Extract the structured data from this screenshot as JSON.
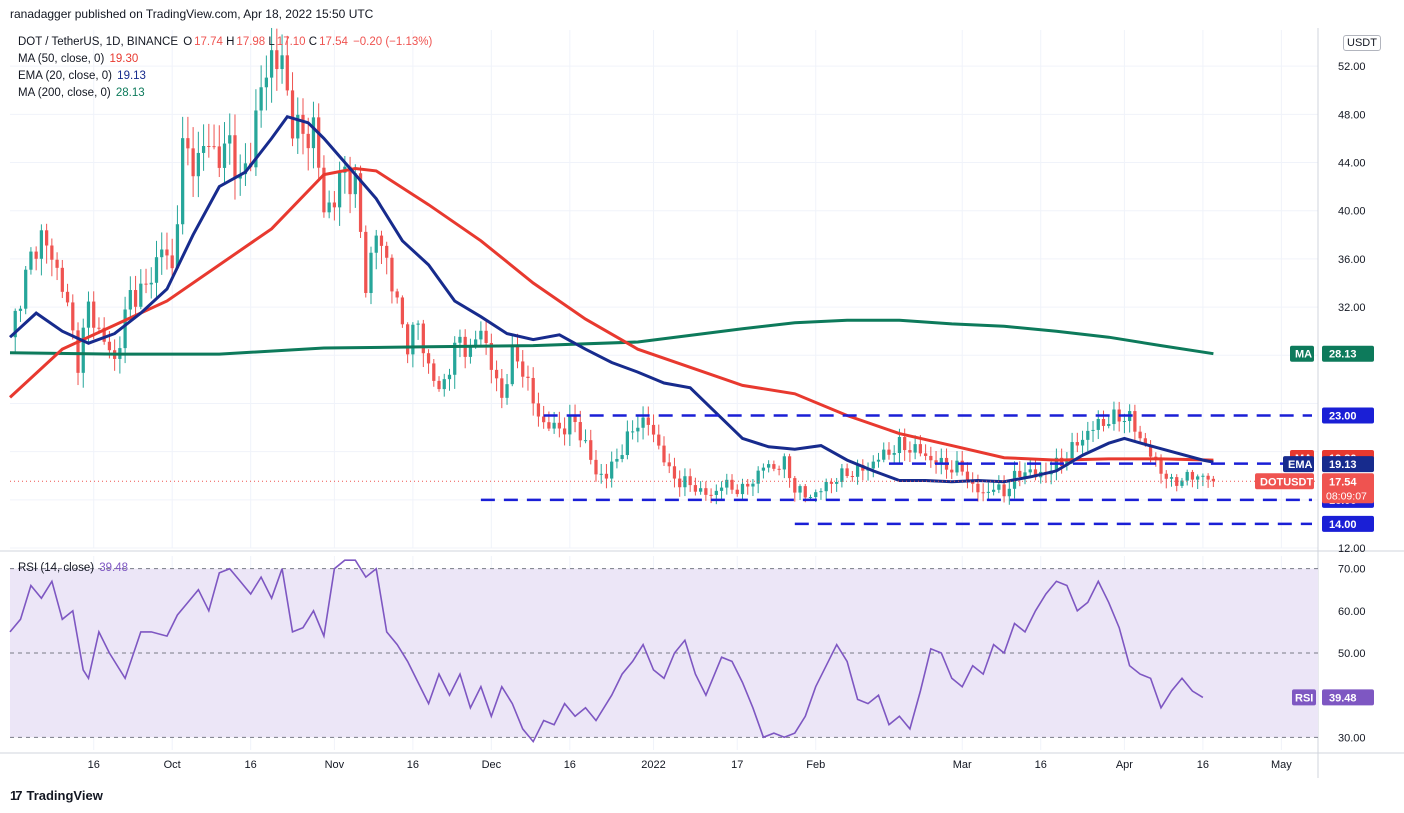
{
  "publisher": "ranadagger published on TradingView.com, Apr 18, 2022 15:50 UTC",
  "branding": "TradingView",
  "legend": {
    "title": "DOT / TetherUS, 1D, BINANCE",
    "ohlc": [
      {
        "k": "O",
        "v": "17.74"
      },
      {
        "k": "H",
        "v": "17.98"
      },
      {
        "k": "L",
        "v": "17.10"
      },
      {
        "k": "C",
        "v": "17.54"
      }
    ],
    "change": "−0.20 (−1.13%)",
    "indicators": [
      {
        "label": "MA (50, close, 0)",
        "value": "19.30",
        "color": "#e8392f"
      },
      {
        "label": "EMA (20, close, 0)",
        "value": "19.13",
        "color": "#172b8d"
      },
      {
        "label": "MA (200, close, 0)",
        "value": "28.13",
        "color": "#0d7a5b"
      }
    ]
  },
  "currency": "USDT",
  "colors": {
    "up": "#26a69a",
    "down": "#ef5350",
    "ma50": "#e8392f",
    "ema20": "#172b8d",
    "ma200": "#0d7a5b",
    "levels": "#1a1fd6",
    "rsi_line": "#7e57c2",
    "rsi_band": "#ece6f7",
    "grid": "#f0f3fa",
    "axis_text": "#131722"
  },
  "chart_data": {
    "type": "candlestick",
    "ylim": [
      12,
      55
    ],
    "y_ticks": [
      12,
      16,
      20,
      24,
      28,
      32,
      36,
      40,
      44,
      48,
      52
    ],
    "y_tick_labels": [
      "12.00",
      "",
      "",
      "",
      "",
      "32.00",
      "36.00",
      "40.00",
      "44.00",
      "48.00",
      "52.00"
    ],
    "x_ticks": [
      {
        "day": 16,
        "label": "16"
      },
      {
        "day": 31,
        "label": "Oct"
      },
      {
        "day": 46,
        "label": "16"
      },
      {
        "day": 62,
        "label": "Nov"
      },
      {
        "day": 77,
        "label": "16"
      },
      {
        "day": 92,
        "label": "Dec"
      },
      {
        "day": 107,
        "label": "16"
      },
      {
        "day": 123,
        "label": "2022"
      },
      {
        "day": 139,
        "label": "17"
      },
      {
        "day": 154,
        "label": "Feb"
      },
      {
        "day": 182,
        "label": "Mar"
      },
      {
        "day": 197,
        "label": "16"
      },
      {
        "day": 213,
        "label": "Apr"
      },
      {
        "day": 228,
        "label": "16"
      },
      {
        "day": 243,
        "label": "May"
      }
    ],
    "x_days": [
      0,
      250
    ],
    "price_anchors": [
      [
        0,
        29.5
      ],
      [
        2,
        33
      ],
      [
        4,
        36
      ],
      [
        6,
        38
      ],
      [
        8,
        36
      ],
      [
        10,
        34
      ],
      [
        13,
        27.5
      ],
      [
        15,
        32
      ],
      [
        17,
        30
      ],
      [
        20,
        27.5
      ],
      [
        23,
        33
      ],
      [
        26,
        33.5
      ],
      [
        29,
        37
      ],
      [
        31,
        35
      ],
      [
        33,
        45
      ],
      [
        36,
        44
      ],
      [
        38,
        46
      ],
      [
        40,
        44
      ],
      [
        42,
        46
      ],
      [
        44,
        42
      ],
      [
        46,
        45
      ],
      [
        48,
        50
      ],
      [
        50,
        53
      ],
      [
        52,
        52
      ],
      [
        54,
        47.5
      ],
      [
        56,
        46
      ],
      [
        58,
        47
      ],
      [
        60,
        40
      ],
      [
        62,
        41
      ],
      [
        64,
        43.5
      ],
      [
        66,
        42
      ],
      [
        68,
        34
      ],
      [
        70,
        38
      ],
      [
        72,
        36
      ],
      [
        74,
        32
      ],
      [
        76,
        29
      ],
      [
        78,
        30.5
      ],
      [
        80,
        27
      ],
      [
        82,
        25
      ],
      [
        84,
        27
      ],
      [
        86,
        29.5
      ],
      [
        88,
        28
      ],
      [
        90,
        30.5
      ],
      [
        92,
        27
      ],
      [
        94,
        24.5
      ],
      [
        96,
        28
      ],
      [
        98,
        27
      ],
      [
        100,
        24
      ],
      [
        102,
        22.3
      ],
      [
        104,
        22
      ],
      [
        106,
        22
      ],
      [
        108,
        22.5
      ],
      [
        110,
        20.5
      ],
      [
        112,
        18.2
      ],
      [
        114,
        18
      ],
      [
        116,
        19.5
      ],
      [
        118,
        21
      ],
      [
        120,
        22.5
      ],
      [
        122,
        22.3
      ],
      [
        124,
        20.5
      ],
      [
        126,
        18.3
      ],
      [
        128,
        17.5
      ],
      [
        130,
        17.3
      ],
      [
        132,
        16.7
      ],
      [
        134,
        16.3
      ],
      [
        136,
        17.3
      ],
      [
        138,
        17
      ],
      [
        140,
        16.8
      ],
      [
        142,
        17.6
      ],
      [
        144,
        18.8
      ],
      [
        146,
        18.7
      ],
      [
        148,
        19
      ],
      [
        150,
        17
      ],
      [
        152,
        16.3
      ],
      [
        154,
        16.5
      ],
      [
        156,
        17.2
      ],
      [
        158,
        17.8
      ],
      [
        160,
        18.2
      ],
      [
        162,
        18.4
      ],
      [
        164,
        18.7
      ],
      [
        166,
        19.5
      ],
      [
        168,
        20
      ],
      [
        170,
        20.5
      ],
      [
        172,
        20.3
      ],
      [
        174,
        20
      ],
      [
        176,
        19.3
      ],
      [
        178,
        19
      ],
      [
        180,
        18.6
      ],
      [
        182,
        18.6
      ],
      [
        184,
        17
      ],
      [
        186,
        16.5
      ],
      [
        188,
        17
      ],
      [
        190,
        16.6
      ],
      [
        192,
        17.8
      ],
      [
        194,
        18.5
      ],
      [
        196,
        18
      ],
      [
        198,
        18.3
      ],
      [
        200,
        18.9
      ],
      [
        202,
        19.5
      ],
      [
        204,
        20.8
      ],
      [
        206,
        21.5
      ],
      [
        208,
        22.4
      ],
      [
        210,
        22.5
      ],
      [
        212,
        23
      ],
      [
        214,
        22.7
      ],
      [
        216,
        21.2
      ],
      [
        218,
        19.7
      ],
      [
        220,
        18.5
      ],
      [
        222,
        17.3
      ],
      [
        224,
        17.8
      ],
      [
        226,
        17.9
      ],
      [
        228,
        18
      ],
      [
        230,
        17.54
      ]
    ],
    "ma50": [
      [
        0,
        24.5
      ],
      [
        10,
        28.5
      ],
      [
        20,
        30.5
      ],
      [
        30,
        32.5
      ],
      [
        40,
        35.5
      ],
      [
        50,
        38.5
      ],
      [
        60,
        43
      ],
      [
        66,
        43.5
      ],
      [
        70,
        43.3
      ],
      [
        80,
        40.5
      ],
      [
        90,
        37.5
      ],
      [
        100,
        34
      ],
      [
        110,
        31
      ],
      [
        120,
        28.5
      ],
      [
        130,
        27
      ],
      [
        140,
        25.5
      ],
      [
        150,
        24.8
      ],
      [
        160,
        23
      ],
      [
        170,
        21.5
      ],
      [
        180,
        20.5
      ],
      [
        190,
        19.5
      ],
      [
        200,
        19.3
      ],
      [
        210,
        19.4
      ],
      [
        220,
        19.4
      ],
      [
        230,
        19.3
      ]
    ],
    "ema20": [
      [
        0,
        29.5
      ],
      [
        5,
        31.5
      ],
      [
        10,
        30
      ],
      [
        15,
        29
      ],
      [
        20,
        29.8
      ],
      [
        25,
        31.5
      ],
      [
        30,
        33.5
      ],
      [
        35,
        38
      ],
      [
        40,
        42
      ],
      [
        45,
        43.2
      ],
      [
        50,
        46
      ],
      [
        53,
        47.8
      ],
      [
        57,
        47.3
      ],
      [
        60,
        46
      ],
      [
        65,
        43.5
      ],
      [
        70,
        41
      ],
      [
        75,
        37.5
      ],
      [
        80,
        35.5
      ],
      [
        85,
        32.5
      ],
      [
        90,
        31.2
      ],
      [
        95,
        29.8
      ],
      [
        100,
        29.3
      ],
      [
        105,
        29.7
      ],
      [
        110,
        28.5
      ],
      [
        115,
        27.4
      ],
      [
        120,
        26.6
      ],
      [
        125,
        25.7
      ],
      [
        130,
        25.3
      ],
      [
        135,
        23.2
      ],
      [
        140,
        21.1
      ],
      [
        145,
        20.4
      ],
      [
        150,
        20.2
      ],
      [
        155,
        20.5
      ],
      [
        160,
        19.3
      ],
      [
        165,
        18.4
      ],
      [
        170,
        17.6
      ],
      [
        175,
        17.6
      ],
      [
        180,
        17.5
      ],
      [
        185,
        17.6
      ],
      [
        190,
        17.5
      ],
      [
        195,
        17.9
      ],
      [
        200,
        18.4
      ],
      [
        205,
        19.7
      ],
      [
        210,
        20.7
      ],
      [
        213,
        21.1
      ],
      [
        217,
        20.6
      ],
      [
        222,
        20
      ],
      [
        228,
        19.3
      ],
      [
        230,
        19.13
      ]
    ],
    "ma200": [
      [
        0,
        28.2
      ],
      [
        20,
        28.1
      ],
      [
        40,
        28.1
      ],
      [
        60,
        28.6
      ],
      [
        80,
        28.7
      ],
      [
        100,
        28.8
      ],
      [
        120,
        29.1
      ],
      [
        140,
        30.2
      ],
      [
        150,
        30.7
      ],
      [
        160,
        30.9
      ],
      [
        170,
        30.9
      ],
      [
        180,
        30.6
      ],
      [
        190,
        30.4
      ],
      [
        200,
        30
      ],
      [
        210,
        29.5
      ],
      [
        220,
        28.8
      ],
      [
        230,
        28.13
      ]
    ],
    "horizontal_levels": [
      {
        "value": 23,
        "label": "23.00",
        "from_day": 102
      },
      {
        "value": 19,
        "label": "19.00",
        "from_day": 168
      },
      {
        "value": 16,
        "label": "16.00",
        "from_day": 90
      },
      {
        "value": 14,
        "label": "14.00",
        "from_day": 150
      }
    ],
    "price_tags": [
      {
        "value": 28.13,
        "text": "28.13",
        "label": "MA",
        "color": "#0d7a5b"
      },
      {
        "value": 19.3,
        "text": "19.30",
        "label": "MA",
        "color": "#e8392f"
      },
      {
        "value": 19.13,
        "text": "19.13",
        "label": "EMA",
        "color": "#172b8d"
      },
      {
        "value": 17.54,
        "text": "17.54",
        "label": "DOTUSDT",
        "color": "#ef5350",
        "sub": "08:09:07"
      }
    ],
    "rsi": {
      "label": "RSI (14, close)",
      "value": "39.48",
      "tag_label": "RSI",
      "ylim": [
        27,
        73
      ],
      "band": [
        30,
        70
      ],
      "mid": 50,
      "y_ticks": [
        {
          "v": 30,
          "t": "30.00"
        },
        {
          "v": 40,
          "t": ""
        },
        {
          "v": 50,
          "t": "50.00"
        },
        {
          "v": 60,
          "t": "60.00"
        },
        {
          "v": 70,
          "t": "70.00"
        }
      ],
      "points": [
        [
          0,
          55
        ],
        [
          2,
          58
        ],
        [
          4,
          66
        ],
        [
          6,
          63
        ],
        [
          8,
          67
        ],
        [
          10,
          58
        ],
        [
          12,
          60
        ],
        [
          14,
          46
        ],
        [
          15,
          44
        ],
        [
          17,
          55
        ],
        [
          19,
          50
        ],
        [
          22,
          44
        ],
        [
          25,
          55
        ],
        [
          27,
          55
        ],
        [
          30,
          54
        ],
        [
          32,
          59
        ],
        [
          34,
          62
        ],
        [
          36,
          65
        ],
        [
          38,
          60
        ],
        [
          40,
          69
        ],
        [
          42,
          70
        ],
        [
          44,
          67
        ],
        [
          46,
          64
        ],
        [
          48,
          68
        ],
        [
          50,
          63
        ],
        [
          52,
          70
        ],
        [
          54,
          55
        ],
        [
          56,
          56
        ],
        [
          58,
          60
        ],
        [
          60,
          54
        ],
        [
          62,
          70
        ],
        [
          64,
          72
        ],
        [
          66,
          72
        ],
        [
          68,
          68
        ],
        [
          70,
          70
        ],
        [
          72,
          55
        ],
        [
          74,
          52
        ],
        [
          76,
          48
        ],
        [
          78,
          43
        ],
        [
          80,
          38
        ],
        [
          82,
          45
        ],
        [
          84,
          40
        ],
        [
          86,
          45
        ],
        [
          88,
          37
        ],
        [
          90,
          42
        ],
        [
          92,
          35
        ],
        [
          94,
          42
        ],
        [
          96,
          38
        ],
        [
          98,
          32
        ],
        [
          100,
          29
        ],
        [
          102,
          34
        ],
        [
          104,
          33
        ],
        [
          106,
          38
        ],
        [
          108,
          35
        ],
        [
          110,
          37
        ],
        [
          112,
          34
        ],
        [
          115,
          40
        ],
        [
          117,
          45
        ],
        [
          119,
          48
        ],
        [
          121,
          52
        ],
        [
          123,
          46
        ],
        [
          125,
          44
        ],
        [
          127,
          50
        ],
        [
          129,
          53
        ],
        [
          131,
          45
        ],
        [
          133,
          40
        ],
        [
          136,
          49
        ],
        [
          138,
          48
        ],
        [
          140,
          43
        ],
        [
          142,
          37
        ],
        [
          144,
          30
        ],
        [
          146,
          31
        ],
        [
          148,
          30
        ],
        [
          150,
          31
        ],
        [
          152,
          35
        ],
        [
          154,
          42
        ],
        [
          156,
          47
        ],
        [
          158,
          52
        ],
        [
          160,
          48
        ],
        [
          162,
          39
        ],
        [
          164,
          38
        ],
        [
          166,
          40
        ],
        [
          168,
          33
        ],
        [
          170,
          35
        ],
        [
          172,
          32
        ],
        [
          174,
          41
        ],
        [
          176,
          51
        ],
        [
          178,
          50
        ],
        [
          180,
          44
        ],
        [
          182,
          42
        ],
        [
          184,
          47
        ],
        [
          186,
          45
        ],
        [
          188,
          52
        ],
        [
          190,
          50
        ],
        [
          192,
          57
        ],
        [
          194,
          55
        ],
        [
          196,
          60
        ],
        [
          198,
          64
        ],
        [
          200,
          67
        ],
        [
          202,
          66
        ],
        [
          204,
          60
        ],
        [
          206,
          62
        ],
        [
          208,
          67
        ],
        [
          210,
          62
        ],
        [
          212,
          56
        ],
        [
          214,
          47
        ],
        [
          216,
          45
        ],
        [
          218,
          44
        ],
        [
          220,
          37
        ],
        [
          222,
          41
        ],
        [
          224,
          44
        ],
        [
          226,
          41
        ],
        [
          228,
          39.48
        ]
      ]
    }
  }
}
